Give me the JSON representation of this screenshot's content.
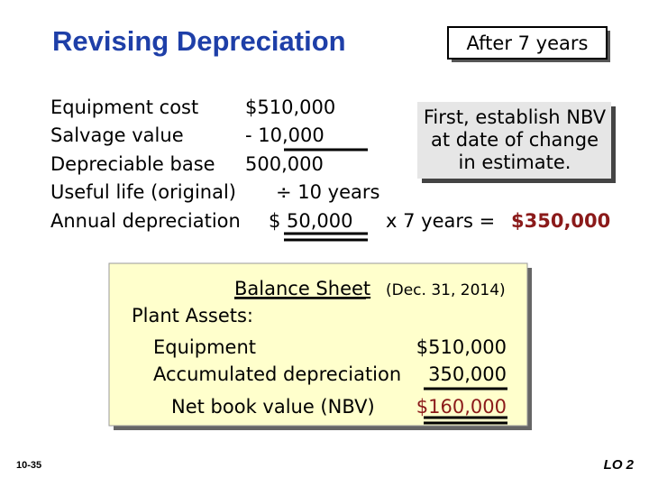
{
  "title": "Revising Depreciation",
  "badge": "After 7 years",
  "schedule": [
    {
      "label": "Equipment cost",
      "value": "$510,000"
    },
    {
      "label": "Salvage value",
      "value": "-   10,000"
    },
    {
      "label": "Depreciable base",
      "value": "500,000"
    },
    {
      "label": "Useful life (original)",
      "value": "÷ 10 years"
    },
    {
      "label": "Annual depreciation",
      "value": "$ 50,000"
    }
  ],
  "callout": [
    "First, establish NBV",
    "at date of change",
    "in estimate."
  ],
  "calculation": {
    "operation": "x  7 years  =",
    "result": "$350,000"
  },
  "balance_sheet": {
    "heading": "Balance Sheet",
    "date": "(Dec. 31, 2014)",
    "section": "Plant Assets:",
    "rows": [
      {
        "label": "Equipment",
        "value": "$510,000"
      },
      {
        "label": "Accumulated depreciation",
        "value": "350,000"
      },
      {
        "label": "Net book value (NBV)",
        "value": "$160,000"
      }
    ]
  },
  "footer": {
    "slide": "10-35",
    "objective": "LO 2"
  }
}
